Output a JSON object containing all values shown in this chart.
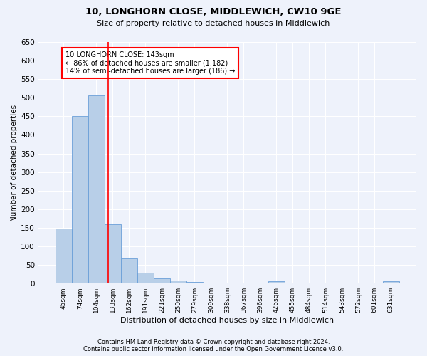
{
  "title": "10, LONGHORN CLOSE, MIDDLEWICH, CW10 9GE",
  "subtitle": "Size of property relative to detached houses in Middlewich",
  "xlabel": "Distribution of detached houses by size in Middlewich",
  "ylabel": "Number of detached properties",
  "footnote1": "Contains HM Land Registry data © Crown copyright and database right 2024.",
  "footnote2": "Contains public sector information licensed under the Open Government Licence v3.0.",
  "bar_labels": [
    "45sqm",
    "74sqm",
    "104sqm",
    "133sqm",
    "162sqm",
    "191sqm",
    "221sqm",
    "250sqm",
    "279sqm",
    "309sqm",
    "338sqm",
    "367sqm",
    "396sqm",
    "426sqm",
    "455sqm",
    "484sqm",
    "514sqm",
    "543sqm",
    "572sqm",
    "601sqm",
    "631sqm"
  ],
  "bar_values": [
    148,
    450,
    507,
    160,
    68,
    30,
    14,
    9,
    5,
    0,
    0,
    0,
    0,
    6,
    0,
    0,
    0,
    0,
    0,
    0,
    6
  ],
  "bar_color": "#b8cfe8",
  "bar_edge_color": "#6a9fd8",
  "ylim": [
    0,
    650
  ],
  "yticks": [
    0,
    50,
    100,
    150,
    200,
    250,
    300,
    350,
    400,
    450,
    500,
    550,
    600,
    650
  ],
  "property_line_x": 2.72,
  "property_label": "10 LONGHORN CLOSE: 143sqm",
  "annotation_line1": "← 86% of detached houses are smaller (1,182)",
  "annotation_line2": "14% of semi-detached houses are larger (186) →",
  "line_color": "red",
  "background_color": "#eef2fb",
  "grid_color": "#ffffff"
}
